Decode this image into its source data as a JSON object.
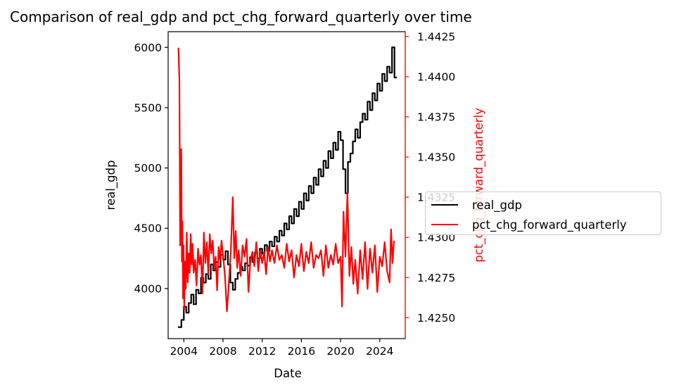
{
  "chart_data": {
    "type": "line",
    "title": "Comparison of real_gdp and pct_chg_forward_quarterly over time",
    "xlabel": "Date",
    "ylabel_left": "real_gdp",
    "ylabel_right": "pct_chg_forward_quarterly",
    "xlim": [
      2002.4,
      2026.6
    ],
    "ylim_left": [
      3585,
      6130
    ],
    "ylim_right": [
      1.4237,
      1.4428
    ],
    "x_ticks": [
      2004,
      2008,
      2012,
      2016,
      2020,
      2024
    ],
    "x_tick_labels": [
      "2004",
      "2008",
      "2012",
      "2016",
      "2020",
      "2024"
    ],
    "y_left_ticks": [
      4000,
      4500,
      5000,
      5500,
      6000
    ],
    "y_left_tick_labels": [
      "4000",
      "4500",
      "5000",
      "5500",
      "6000"
    ],
    "y_right_ticks": [
      1.425,
      1.4275,
      1.43,
      1.4325,
      1.435,
      1.4375,
      1.44,
      1.4425
    ],
    "y_right_tick_labels": [
      "1.4250",
      "1.4275",
      "1.4300",
      "1.4325",
      "1.4350",
      "1.4375",
      "1.4400",
      "1.4425"
    ],
    "legend": {
      "position": "right"
    },
    "grid": false,
    "series": [
      {
        "name": "real_gdp",
        "color": "#000000",
        "axis": "left",
        "style": "step",
        "x": [
          2003.4,
          2003.75,
          2004.0,
          2004.25,
          2004.5,
          2004.75,
          2005.0,
          2005.25,
          2005.5,
          2005.75,
          2006.0,
          2006.25,
          2006.5,
          2006.75,
          2007.0,
          2007.25,
          2007.5,
          2007.75,
          2008.0,
          2008.25,
          2008.5,
          2008.75,
          2009.0,
          2009.25,
          2009.5,
          2009.75,
          2010.0,
          2010.25,
          2010.5,
          2010.75,
          2011.0,
          2011.25,
          2011.5,
          2011.75,
          2012.0,
          2012.25,
          2012.5,
          2012.75,
          2013.0,
          2013.25,
          2013.5,
          2013.75,
          2014.0,
          2014.25,
          2014.5,
          2014.75,
          2015.0,
          2015.25,
          2015.5,
          2015.75,
          2016.0,
          2016.25,
          2016.5,
          2016.75,
          2017.0,
          2017.25,
          2017.5,
          2017.75,
          2018.0,
          2018.25,
          2018.5,
          2018.75,
          2019.0,
          2019.25,
          2019.5,
          2019.75,
          2020.0,
          2020.25,
          2020.5,
          2020.75,
          2021.0,
          2021.25,
          2021.5,
          2021.75,
          2022.0,
          2022.25,
          2022.5,
          2022.75,
          2023.0,
          2023.25,
          2023.5,
          2023.75,
          2024.0,
          2024.25,
          2024.5,
          2024.75,
          2025.0,
          2025.25,
          2025.5
        ],
        "values": [
          3680,
          3740,
          3850,
          3800,
          3880,
          3950,
          3870,
          3990,
          3960,
          4090,
          4050,
          4120,
          4080,
          4200,
          4150,
          4220,
          4180,
          4280,
          4240,
          4310,
          4200,
          4050,
          3990,
          4080,
          4130,
          4180,
          4150,
          4210,
          4190,
          4260,
          4220,
          4300,
          4250,
          4330,
          4290,
          4360,
          4310,
          4390,
          4350,
          4430,
          4390,
          4480,
          4440,
          4540,
          4490,
          4600,
          4540,
          4660,
          4600,
          4720,
          4660,
          4790,
          4730,
          4850,
          4790,
          4920,
          4860,
          4990,
          4930,
          5060,
          5000,
          5140,
          5080,
          5210,
          5150,
          5300,
          5230,
          4990,
          4790,
          5050,
          5120,
          5220,
          5320,
          5250,
          5380,
          5450,
          5400,
          5550,
          5480,
          5620,
          5560,
          5700,
          5640,
          5780,
          5720,
          5840,
          5790,
          6000,
          5750
        ]
      },
      {
        "name": "pct_chg_forward_quarterly",
        "color": "#ff0000",
        "axis": "right",
        "style": "line",
        "x": [
          2003.45,
          2003.55,
          2003.62,
          2003.68,
          2003.74,
          2003.8,
          2003.86,
          2003.92,
          2003.98,
          2004.05,
          2004.12,
          2004.2,
          2004.3,
          2004.4,
          2004.5,
          2004.6,
          2004.7,
          2004.8,
          2004.9,
          2005.0,
          2005.15,
          2005.3,
          2005.45,
          2005.6,
          2005.75,
          2005.9,
          2006.05,
          2006.2,
          2006.35,
          2006.5,
          2006.65,
          2006.8,
          2006.95,
          2007.1,
          2007.25,
          2007.4,
          2007.55,
          2007.7,
          2007.85,
          2008.0,
          2008.2,
          2008.4,
          2008.6,
          2008.8,
          2009.0,
          2009.15,
          2009.3,
          2009.45,
          2009.6,
          2009.8,
          2010.0,
          2010.2,
          2010.4,
          2010.6,
          2010.8,
          2011.0,
          2011.2,
          2011.4,
          2011.6,
          2011.8,
          2012.0,
          2012.2,
          2012.4,
          2012.6,
          2012.8,
          2013.0,
          2013.25,
          2013.5,
          2013.75,
          2014.0,
          2014.25,
          2014.5,
          2014.75,
          2015.0,
          2015.25,
          2015.5,
          2015.75,
          2016.0,
          2016.25,
          2016.5,
          2016.75,
          2017.0,
          2017.25,
          2017.5,
          2017.75,
          2018.0,
          2018.25,
          2018.5,
          2018.75,
          2019.0,
          2019.25,
          2019.5,
          2019.75,
          2020.0,
          2020.15,
          2020.3,
          2020.5,
          2020.7,
          2020.9,
          2021.1,
          2021.3,
          2021.5,
          2021.75,
          2022.0,
          2022.25,
          2022.5,
          2022.75,
          2023.0,
          2023.25,
          2023.5,
          2023.75,
          2024.0,
          2024.25,
          2024.5,
          2024.75,
          2025.0,
          2025.15,
          2025.3,
          2025.45
        ],
        "values": [
          1.4418,
          1.4398,
          1.4295,
          1.4342,
          1.4355,
          1.4285,
          1.431,
          1.4262,
          1.4295,
          1.4255,
          1.4285,
          1.4268,
          1.4303,
          1.4272,
          1.429,
          1.4278,
          1.4302,
          1.4283,
          1.4296,
          1.4278,
          1.4286,
          1.427,
          1.4293,
          1.4283,
          1.4289,
          1.4265,
          1.4303,
          1.4284,
          1.4297,
          1.4277,
          1.4302,
          1.429,
          1.4298,
          1.428,
          1.4288,
          1.4267,
          1.4294,
          1.4286,
          1.4298,
          1.4289,
          1.4276,
          1.4254,
          1.4272,
          1.4292,
          1.4325,
          1.4287,
          1.4304,
          1.4281,
          1.4292,
          1.4276,
          1.4295,
          1.4288,
          1.4299,
          1.4266,
          1.4286,
          1.4291,
          1.4282,
          1.4297,
          1.4279,
          1.4292,
          1.4284,
          1.4291,
          1.4277,
          1.4294,
          1.4285,
          1.4292,
          1.4284,
          1.4295,
          1.4286,
          1.4289,
          1.4281,
          1.4296,
          1.4285,
          1.4292,
          1.4275,
          1.4289,
          1.4282,
          1.4296,
          1.4279,
          1.4291,
          1.4284,
          1.4297,
          1.4281,
          1.4289,
          1.4287,
          1.4292,
          1.4276,
          1.4295,
          1.4281,
          1.4289,
          1.4283,
          1.4296,
          1.4284,
          1.4288,
          1.4257,
          1.4316,
          1.4288,
          1.4328,
          1.4276,
          1.4294,
          1.4271,
          1.4286,
          1.4265,
          1.4292,
          1.4274,
          1.4297,
          1.4268,
          1.4293,
          1.4278,
          1.4295,
          1.4266,
          1.4288,
          1.4282,
          1.4297,
          1.4279,
          1.4272,
          1.4305,
          1.4284,
          1.4298
        ]
      }
    ]
  }
}
